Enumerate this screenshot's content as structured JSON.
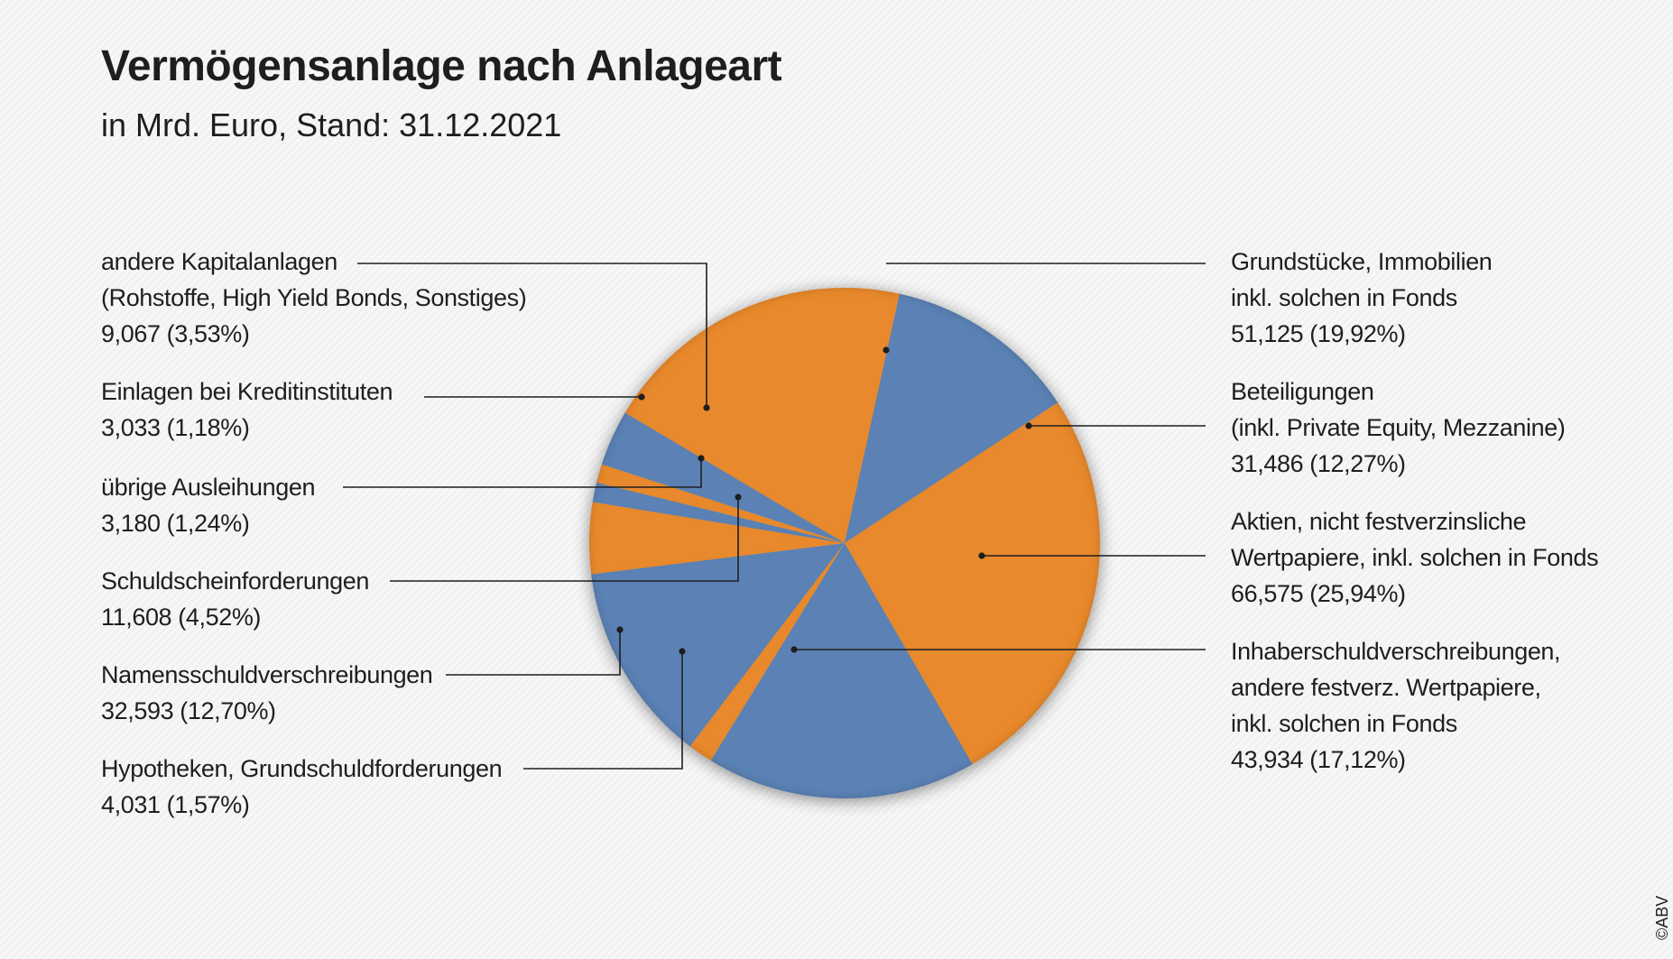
{
  "chart_data": {
    "type": "pie",
    "title": "Vermögensanlage nach Anlageart",
    "subtitle": "in Mrd. Euro, Stand: 31.12.2021",
    "colors": {
      "orange": "#e8892d",
      "blue": "#5b82b5"
    },
    "slices": [
      {
        "lines": [
          "Grundstücke, Immobilien",
          "inkl. solchen in Fonds"
        ],
        "value_text": "51,125 (19,92%)",
        "value": 51.125,
        "percent": 19.92,
        "color": "#e8892d"
      },
      {
        "lines": [
          "Beteiligungen",
          "(inkl. Private Equity, Mezzanine)"
        ],
        "value_text": "31,486 (12,27%)",
        "value": 31.486,
        "percent": 12.27,
        "color": "#5b82b5"
      },
      {
        "lines": [
          "Aktien, nicht festverzinsliche",
          "Wertpapiere, inkl. solchen in Fonds"
        ],
        "value_text": "66,575 (25,94%)",
        "value": 66.575,
        "percent": 25.94,
        "color": "#e8892d"
      },
      {
        "lines": [
          "Inhaberschuldverschreibungen,",
          "andere festverz. Wertpapiere,",
          "inkl. solchen in Fonds"
        ],
        "value_text": "43,934 (17,12%)",
        "value": 43.934,
        "percent": 17.12,
        "color": "#5b82b5"
      },
      {
        "lines": [
          "Hypotheken, Grundschuldforderungen"
        ],
        "value_text": "4,031 (1,57%)",
        "value": 4.031,
        "percent": 1.57,
        "color": "#e8892d"
      },
      {
        "lines": [
          "Namensschuldverschreibungen"
        ],
        "value_text": "32,593 (12,70%)",
        "value": 32.593,
        "percent": 12.7,
        "color": "#5b82b5"
      },
      {
        "lines": [
          "Schuldscheinforderungen"
        ],
        "value_text": "11,608 (4,52%)",
        "value": 11.608,
        "percent": 4.52,
        "color": "#e8892d"
      },
      {
        "lines": [
          "übrige Ausleihungen"
        ],
        "value_text": "3,180 (1,24%)",
        "value": 3.18,
        "percent": 1.24,
        "color": "#5b82b5"
      },
      {
        "lines": [
          "Einlagen bei Kreditinstituten"
        ],
        "value_text": "3,033 (1,18%)",
        "value": 3.033,
        "percent": 1.18,
        "color": "#e8892d"
      },
      {
        "lines": [
          "andere Kapitalanlagen",
          "(Rohstoffe, High Yield Bonds, Sonstiges)"
        ],
        "value_text": "9,067 (3,53%)",
        "value": 9.067,
        "percent": 3.53,
        "color": "#5b82b5"
      }
    ]
  },
  "copyright": "©ABV"
}
